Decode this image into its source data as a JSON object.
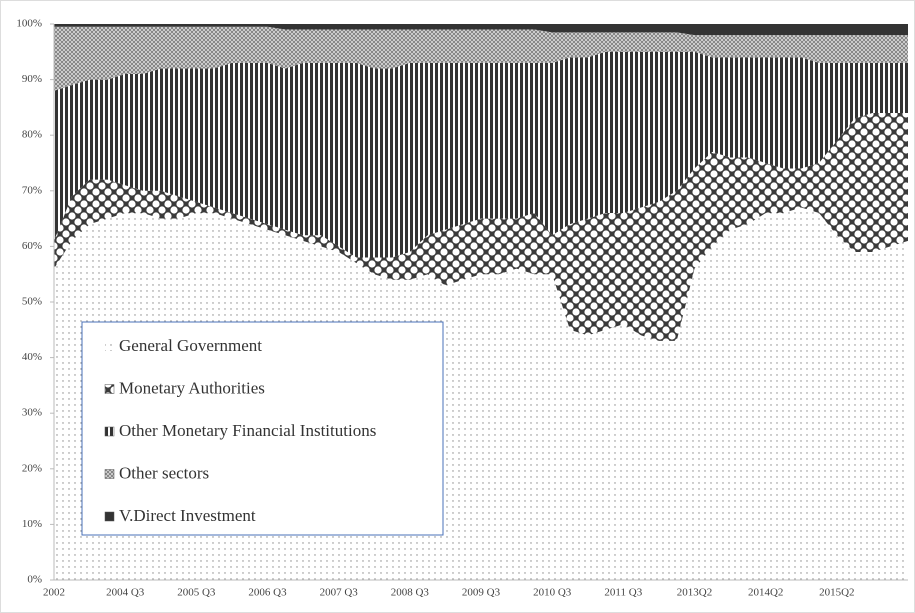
{
  "chart_data": {
    "type": "stacked_area",
    "categories": [
      "2002",
      null,
      null,
      null,
      "2004 Q3",
      null,
      null,
      null,
      "2005 Q3",
      null,
      null,
      null,
      "2006 Q3",
      null,
      null,
      null,
      "2007 Q3",
      null,
      null,
      null,
      "2008 Q3",
      null,
      null,
      null,
      "2009 Q3",
      null,
      null,
      null,
      "2010 Q3",
      null,
      null,
      null,
      "2011 Q3",
      null,
      null,
      null,
      "2013Q2",
      null,
      null,
      null,
      "2014Q2",
      null,
      null,
      null,
      "2015Q2",
      null,
      null,
      null,
      null
    ],
    "series": [
      {
        "name": "General Government",
        "color": "#888888",
        "pattern": "dots",
        "values": [
          56,
          61,
          64,
          65,
          66,
          66,
          65,
          65,
          66,
          66,
          65,
          64,
          63,
          62,
          61,
          60,
          59,
          57,
          55,
          54,
          54,
          55,
          53,
          54,
          55,
          55,
          56,
          55,
          55,
          45,
          44,
          45,
          46,
          44,
          43,
          43,
          56,
          60,
          63,
          64,
          66,
          66,
          67,
          66,
          62,
          59,
          59,
          60,
          61
        ]
      },
      {
        "name": "Monetary Authorities",
        "color": "#3a3a3a",
        "pattern": "checker",
        "values": [
          5,
          8,
          8,
          7,
          5,
          4,
          5,
          4,
          2,
          1,
          1,
          1,
          1,
          1,
          1,
          2,
          1,
          1,
          3,
          4,
          5,
          7,
          10,
          10,
          10,
          10,
          9,
          11,
          7,
          19,
          21,
          21,
          20,
          23,
          25,
          27,
          18,
          17,
          13,
          12,
          9,
          8,
          7,
          9,
          17,
          24,
          25,
          24,
          23
        ]
      },
      {
        "name": "Other Monetary  Financial Institutions",
        "color": "#333333",
        "pattern": "vlines",
        "values": [
          27,
          20,
          18,
          18,
          20,
          21,
          22,
          23,
          24,
          25,
          27,
          28,
          29,
          29,
          31,
          31,
          33,
          35,
          34,
          34,
          34,
          31,
          30,
          29,
          28,
          28,
          28,
          27,
          31,
          30,
          29,
          29,
          29,
          28,
          27,
          25,
          21,
          17,
          18,
          18,
          19,
          20,
          20,
          18,
          14,
          10,
          9,
          9,
          9
        ]
      },
      {
        "name": "Other sectors",
        "color": "#777777",
        "pattern": "hatch",
        "values": [
          11.5,
          10.5,
          9.5,
          9.5,
          8.5,
          8.5,
          7.5,
          7.5,
          7.5,
          7.5,
          6.5,
          6.5,
          6.5,
          7,
          6,
          6,
          6,
          6,
          7,
          7,
          6,
          6,
          6,
          6,
          6,
          6,
          6,
          6,
          5.5,
          4.5,
          4.5,
          3.5,
          3.5,
          3.5,
          3.5,
          3.5,
          3,
          4,
          4,
          4,
          4,
          4,
          4,
          5,
          5,
          5,
          5,
          5,
          5
        ]
      },
      {
        "name": "V.Direct Investment",
        "color": "#333333",
        "pattern": "solid",
        "values": [
          0.5,
          0.5,
          0.5,
          0.5,
          0.5,
          0.5,
          0.5,
          0.5,
          0.5,
          0.5,
          0.5,
          0.5,
          0.5,
          1,
          1,
          1,
          1,
          1,
          1,
          1,
          1,
          1,
          1,
          1,
          1,
          1,
          1,
          1,
          1.5,
          1.5,
          1.5,
          1.5,
          1.5,
          1.5,
          1.5,
          1.5,
          2,
          2,
          2,
          2,
          2,
          2,
          2,
          2,
          2,
          2,
          2,
          2,
          2
        ]
      }
    ],
    "ylim": [
      0,
      100
    ],
    "yticks": [
      {
        "value": 0,
        "label": "0%"
      },
      {
        "value": 10,
        "label": "10%"
      },
      {
        "value": 20,
        "label": "20%"
      },
      {
        "value": 30,
        "label": "30%"
      },
      {
        "value": 40,
        "label": "40%"
      },
      {
        "value": 50,
        "label": "50%"
      },
      {
        "value": 60,
        "label": "60%"
      },
      {
        "value": 70,
        "label": "70%"
      },
      {
        "value": 80,
        "label": "80%"
      },
      {
        "value": 90,
        "label": "90%"
      },
      {
        "value": 100,
        "label": "100%"
      }
    ],
    "legend": "lower left"
  }
}
